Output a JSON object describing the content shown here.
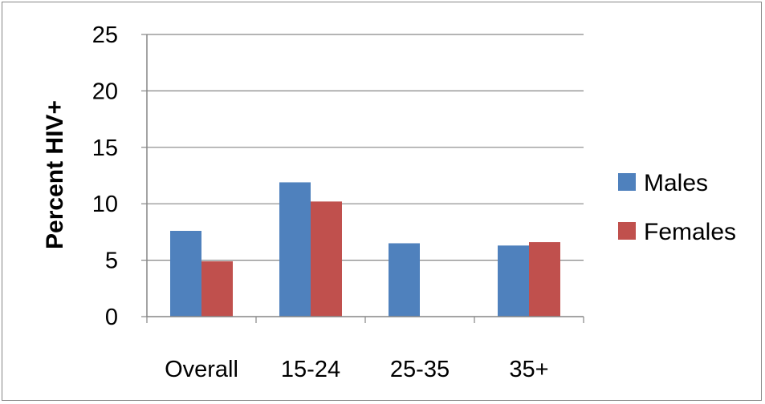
{
  "chart_data": {
    "type": "bar",
    "title": "",
    "xlabel": "",
    "ylabel": "Percent HIV+",
    "categories": [
      "Overall",
      "15-24",
      "25-35",
      "35+"
    ],
    "series": [
      {
        "name": "Males",
        "color": "#4f81bd",
        "values": [
          7.6,
          11.9,
          6.5,
          6.3
        ]
      },
      {
        "name": "Females",
        "color": "#c0504d",
        "values": [
          4.9,
          10.2,
          null,
          6.6
        ]
      }
    ],
    "ylim": [
      0,
      25
    ],
    "yticks": [
      0,
      5,
      10,
      15,
      20,
      25
    ],
    "grid": true,
    "legend_position": "right"
  }
}
